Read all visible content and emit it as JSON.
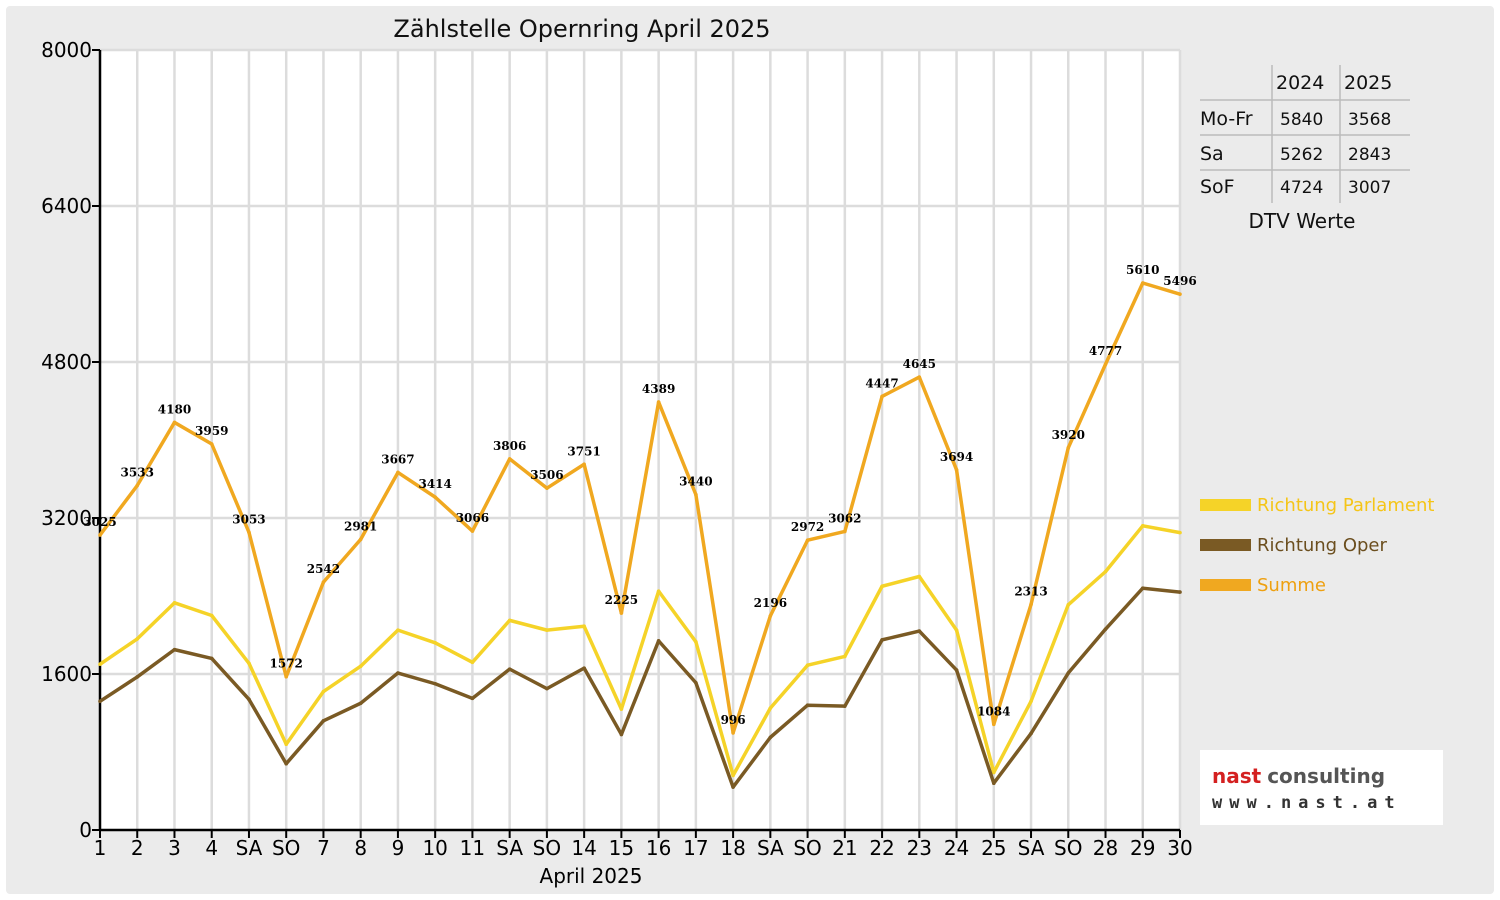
{
  "chart_data": {
    "type": "line",
    "title": "Zählstelle Opernring April 2025",
    "xlabel": "April 2025",
    "ylabel": "",
    "ylim": [
      0,
      8000
    ],
    "yticks": [
      0,
      1600,
      3200,
      4800,
      6400,
      8000
    ],
    "grid": true,
    "legend_position": "right",
    "categories": [
      "1",
      "2",
      "3",
      "4",
      "SA",
      "SO",
      "7",
      "8",
      "9",
      "10",
      "11",
      "SA",
      "SO",
      "14",
      "15",
      "16",
      "17",
      "18",
      "SA",
      "SO",
      "21",
      "22",
      "23",
      "24",
      "25",
      "SA",
      "SO",
      "28",
      "29",
      "30"
    ],
    "category_colors": [
      "#000000",
      "#000000",
      "#000000",
      "#000000",
      "#000000",
      "#e00000",
      "#000000",
      "#000000",
      "#000000",
      "#000000",
      "#000000",
      "#000000",
      "#e00000",
      "#000000",
      "#000000",
      "#000000",
      "#000000",
      "#000000",
      "#000000",
      "#e00000",
      "#e00000",
      "#000000",
      "#000000",
      "#000000",
      "#000000",
      "#000000",
      "#e00000",
      "#000000",
      "#000000",
      "#000000"
    ],
    "series": [
      {
        "name": "Richtung Parlament",
        "color": "#f5d328",
        "values": [
          1700,
          1960,
          2330,
          2200,
          1710,
          880,
          1420,
          1680,
          2050,
          1920,
          1720,
          2150,
          2050,
          2090,
          1240,
          2450,
          1930,
          560,
          1250,
          1690,
          1780,
          2500,
          2600,
          2050,
          590,
          1320,
          2310,
          2650,
          3120,
          3050
        ]
      },
      {
        "name": "Richtung Oper",
        "color": "#7a5a24",
        "values": [
          1320,
          1570,
          1850,
          1760,
          1340,
          680,
          1120,
          1300,
          1610,
          1500,
          1350,
          1650,
          1450,
          1660,
          980,
          1940,
          1510,
          440,
          950,
          1280,
          1270,
          1950,
          2040,
          1640,
          480,
          990,
          1610,
          2060,
          2480,
          2440
        ]
      },
      {
        "name": "Summe",
        "color": "#f0a820",
        "values": [
          3025,
          3533,
          4180,
          3959,
          3053,
          1572,
          2542,
          2981,
          3667,
          3414,
          3066,
          3806,
          3506,
          3751,
          2225,
          4389,
          3440,
          996,
          2196,
          2972,
          3062,
          4447,
          4645,
          3694,
          1084,
          2313,
          3920,
          4777,
          5610,
          5496
        ],
        "labels": [
          "3025",
          "3533",
          "4180",
          "3959",
          "3053",
          "1572",
          "2542",
          "2981",
          "3667",
          "3414",
          "3066",
          "3806",
          "3506",
          "3751",
          "2225",
          "4389",
          "3440",
          "996",
          "2196",
          "2972",
          "3062",
          "4447",
          "4645",
          "3694",
          "1084",
          "2313",
          "3920",
          "4777",
          "5610",
          "5496"
        ]
      }
    ]
  },
  "legend": [
    {
      "label": "Richtung Parlament",
      "color": "#f5d328"
    },
    {
      "label": "Richtung Oper",
      "color": "#7a5a24"
    },
    {
      "label": "Summe",
      "color": "#f0a820"
    }
  ],
  "dtv_table": {
    "headers": [
      "2024",
      "2025"
    ],
    "rows": [
      {
        "label": "Mo-Fr",
        "v2024": "5840",
        "v2025": "3568"
      },
      {
        "label": "Sa",
        "v2024": "5262",
        "v2025": "2843"
      },
      {
        "label": "SoF",
        "v2024": "4724",
        "v2025": "3007"
      }
    ],
    "caption": "DTV Werte"
  },
  "logo": {
    "brand_red": "nast",
    "brand_gray": "consulting",
    "url": "www.nast.at",
    "red_color": "#d42020",
    "gray_color": "#555555"
  }
}
